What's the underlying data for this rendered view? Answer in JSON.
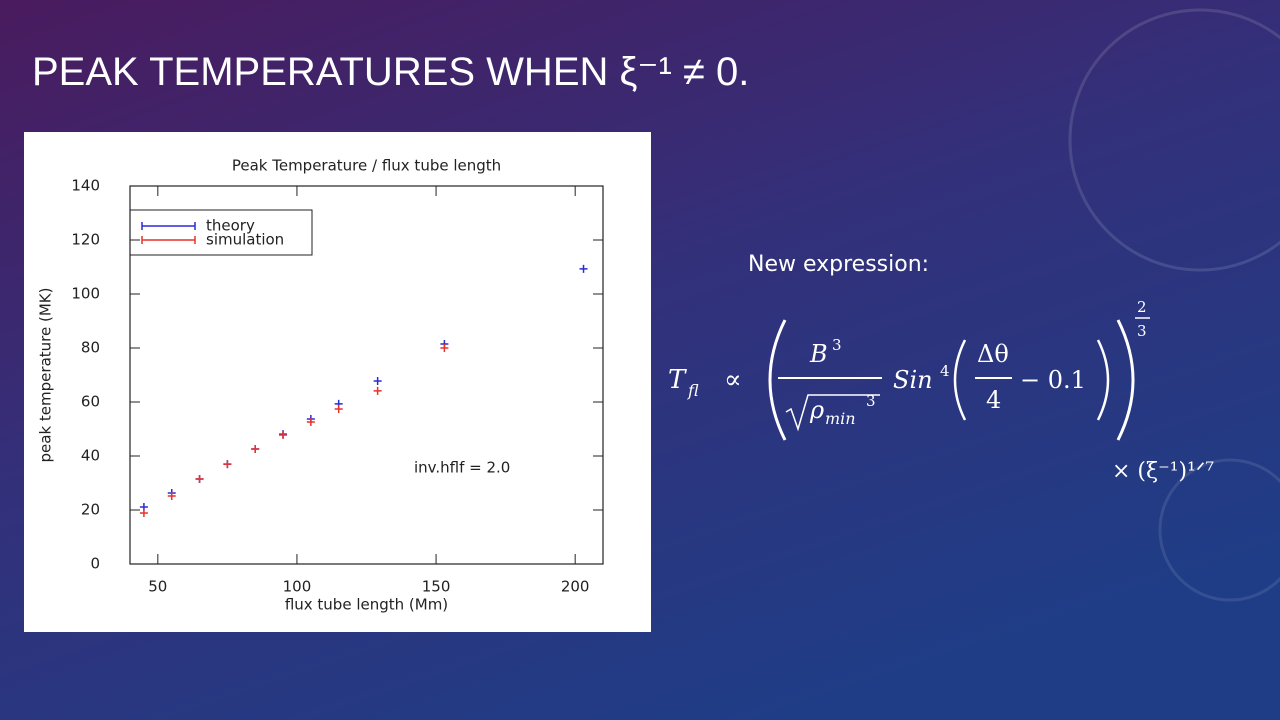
{
  "slide": {
    "title": "PEAK TEMPERATURES WHEN ξ⁻¹ ≠ 0.",
    "label": "New expression:",
    "formula": {
      "lhs": "T",
      "lhs_sub": "fl",
      "prop": "∝",
      "num": "B",
      "num_sup": "3",
      "den": "ρ",
      "den_sub": "min",
      "den_sup": "3",
      "func": "Sin",
      "func_sup": "4",
      "inner_num": "Δθ",
      "inner_den": "4",
      "inner_rest": "− 0.1",
      "exp_num": "2",
      "exp_den": "3",
      "tail": "× (ξ⁻¹)¹ᐟ⁷"
    }
  },
  "chart_data": {
    "type": "scatter",
    "title": "Peak Temperature / flux tube length",
    "xlabel": "flux tube length (Mm)",
    "ylabel": "peak temperature (MK)",
    "annotation": "inv.hflf = 2.0",
    "x": [
      45,
      55,
      65,
      75,
      85,
      95,
      105,
      115,
      129,
      153,
      203
    ],
    "series": [
      {
        "name": "theory",
        "color": "#2b2bd6",
        "values": [
          21.1,
          26.3,
          31.5,
          37,
          42.6,
          48.1,
          53.7,
          59.3,
          67.8,
          81.5,
          109.3
        ]
      },
      {
        "name": "simulation",
        "color": "#e8322a",
        "values": [
          18.9,
          25.2,
          31.5,
          37,
          42.6,
          47.8,
          52.6,
          57.4,
          64.1,
          80,
          null
        ]
      }
    ],
    "xlim": [
      40,
      210
    ],
    "ylim": [
      0,
      140
    ],
    "xticks": [
      50,
      100,
      150,
      200
    ],
    "yticks": [
      0,
      20,
      40,
      60,
      80,
      100,
      120,
      140
    ],
    "legend": "upper left"
  }
}
